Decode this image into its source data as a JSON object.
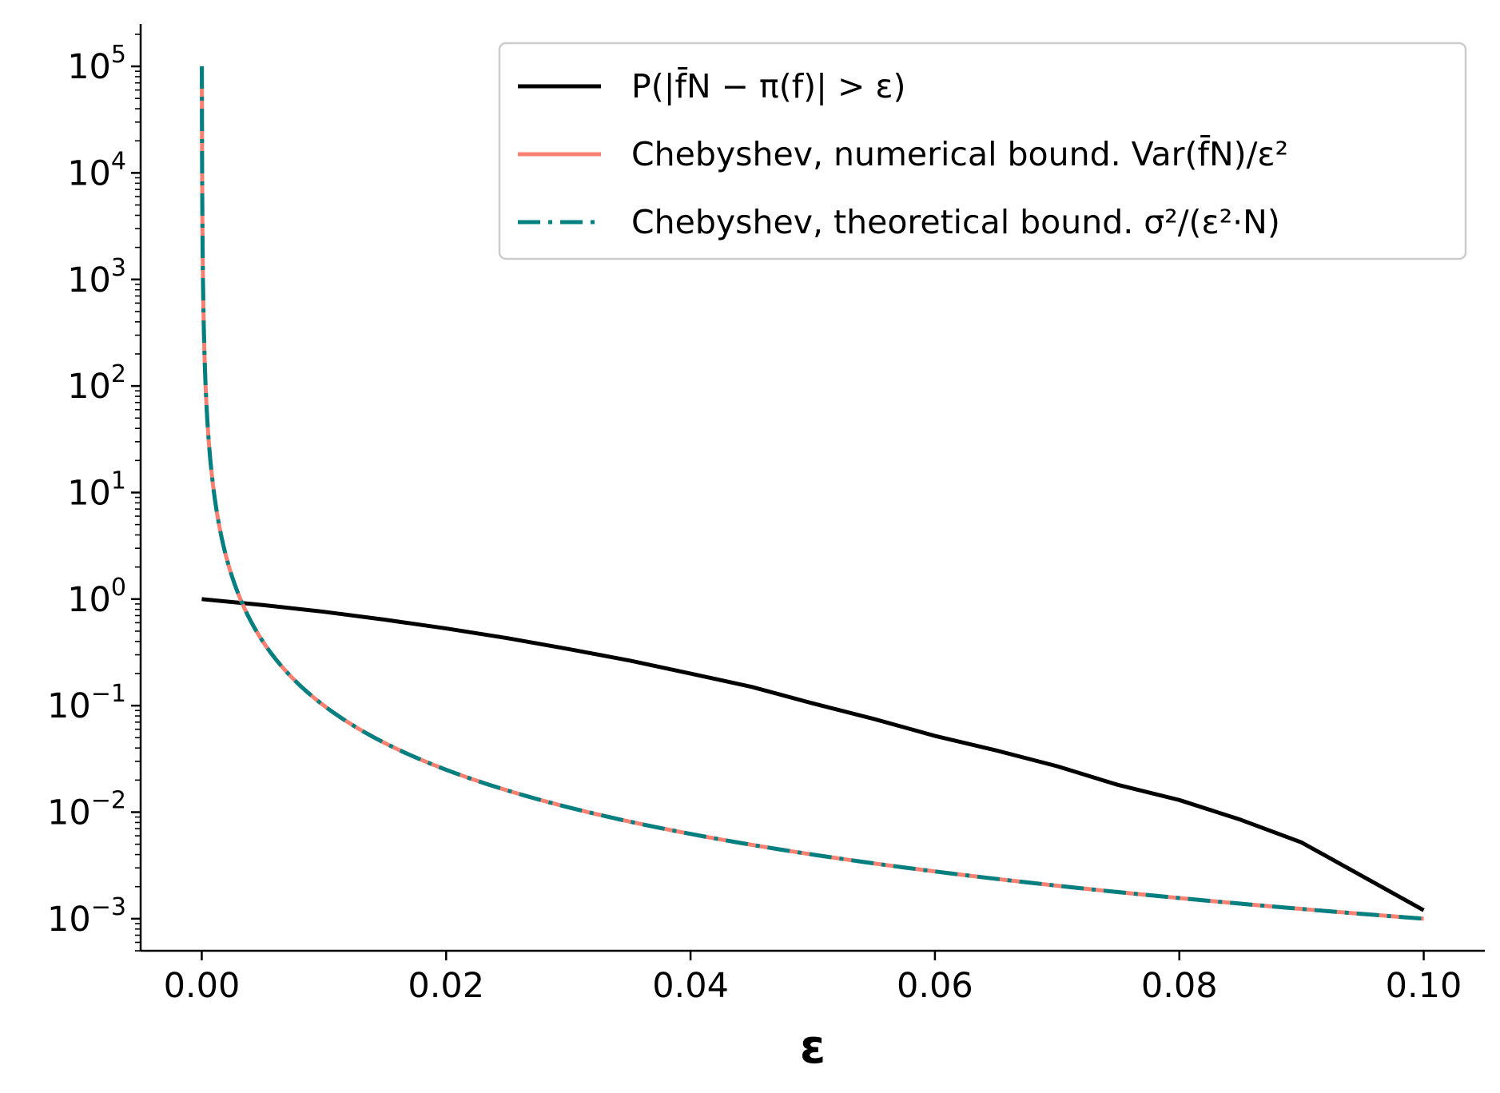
{
  "chart_data": {
    "type": "line",
    "xlabel": "ε",
    "ylabel": "",
    "title": "",
    "xlim": [
      -0.005,
      0.105
    ],
    "ylim": [
      0.0005,
      250000
    ],
    "yscale": "log",
    "x_ticks": [
      "0.00",
      "0.02",
      "0.04",
      "0.06",
      "0.08",
      "0.10"
    ],
    "y_ticks": [
      {
        "base": "10",
        "exp": "5"
      },
      {
        "base": "10",
        "exp": "4"
      },
      {
        "base": "10",
        "exp": "3"
      },
      {
        "base": "10",
        "exp": "2"
      },
      {
        "base": "10",
        "exp": "1"
      },
      {
        "base": "10",
        "exp": "0"
      },
      {
        "base": "10",
        "exp": "−1"
      },
      {
        "base": "10",
        "exp": "−2"
      },
      {
        "base": "10",
        "exp": "−3"
      }
    ],
    "grid": false,
    "legend_position": "top-right",
    "series": [
      {
        "name": "P(|f̄N − π(f)| > ε)",
        "color": "#000000",
        "style": "solid",
        "x": [
          0,
          0.005,
          0.01,
          0.015,
          0.02,
          0.025,
          0.03,
          0.035,
          0.04,
          0.045,
          0.05,
          0.055,
          0.06,
          0.065,
          0.07,
          0.075,
          0.08,
          0.085,
          0.09,
          0.095,
          0.1
        ],
        "y": [
          1.0,
          0.88,
          0.76,
          0.64,
          0.53,
          0.43,
          0.34,
          0.265,
          0.2,
          0.15,
          0.105,
          0.075,
          0.052,
          0.038,
          0.027,
          0.018,
          0.013,
          0.0085,
          0.0052,
          0.0025,
          0.0012
        ]
      },
      {
        "name": "Chebyshev, numerical bound. Var(f̄N)/ε²",
        "color": "#fa8072",
        "style": "solid",
        "x": [
          1e-05,
          2e-05,
          5e-05,
          0.0001,
          0.0002,
          0.0005,
          0.001,
          0.002,
          0.003,
          0.005,
          0.0075,
          0.01,
          0.015,
          0.02,
          0.03,
          0.04,
          0.05,
          0.06,
          0.07,
          0.08,
          0.09,
          0.1
        ],
        "y": [
          100000,
          25000,
          4000,
          1000,
          250,
          40,
          10,
          2.5,
          1.11,
          0.4,
          0.178,
          0.1,
          0.0444,
          0.025,
          0.0111,
          0.00625,
          0.004,
          0.00278,
          0.00204,
          0.00156,
          0.00123,
          0.001
        ]
      },
      {
        "name": "Chebyshev, theoretical bound. σ²/(ε²·N)",
        "color": "#008080",
        "style": "dashdot",
        "x": [
          1e-05,
          2e-05,
          5e-05,
          0.0001,
          0.0002,
          0.0005,
          0.001,
          0.002,
          0.003,
          0.005,
          0.0075,
          0.01,
          0.015,
          0.02,
          0.03,
          0.04,
          0.05,
          0.06,
          0.07,
          0.08,
          0.09,
          0.1
        ],
        "y": [
          100000,
          25000,
          4000,
          1000,
          250,
          40,
          10,
          2.5,
          1.11,
          0.4,
          0.178,
          0.1,
          0.0444,
          0.025,
          0.0111,
          0.00625,
          0.004,
          0.00278,
          0.00204,
          0.00156,
          0.00123,
          0.001
        ]
      }
    ]
  }
}
